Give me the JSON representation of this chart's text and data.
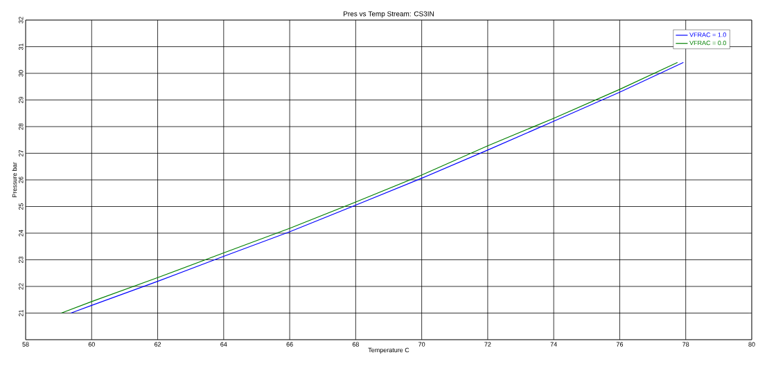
{
  "chart_data": {
    "type": "line",
    "title": "Pres vs Temp Stream: CS3IN",
    "xlabel": "Temperature  C",
    "ylabel": "Pressure  bar",
    "xlim": [
      58,
      80
    ],
    "xticks": [
      58,
      60,
      62,
      64,
      66,
      68,
      70,
      72,
      74,
      76,
      78,
      80
    ],
    "ylim": [
      20,
      32
    ],
    "yticks": [
      {
        "value": 20,
        "label": null
      },
      21,
      22,
      23,
      24,
      25,
      26,
      27,
      28,
      29,
      30,
      31,
      32
    ],
    "grid": true,
    "legend": "top right",
    "marker": "none",
    "line_style": "solid",
    "series": [
      {
        "name": "VFRAC =  1.0",
        "color": "#0000ff",
        "x": [
          59.37,
          60,
          62,
          64,
          66,
          68,
          70,
          72,
          74,
          76,
          77.93
        ],
        "values": [
          21,
          21.29,
          22.19,
          23.13,
          24.05,
          25.05,
          26.06,
          27.12,
          28.2,
          29.29,
          30.41
        ]
      },
      {
        "name": "VFRAC =  0.0",
        "color": "#008000",
        "x": [
          59.08,
          60,
          62,
          64,
          66,
          68,
          70,
          72,
          74,
          76,
          77.75
        ],
        "values": [
          21,
          21.43,
          22.33,
          23.26,
          24.18,
          25.17,
          26.18,
          27.28,
          28.31,
          29.4,
          30.41
        ]
      }
    ]
  }
}
